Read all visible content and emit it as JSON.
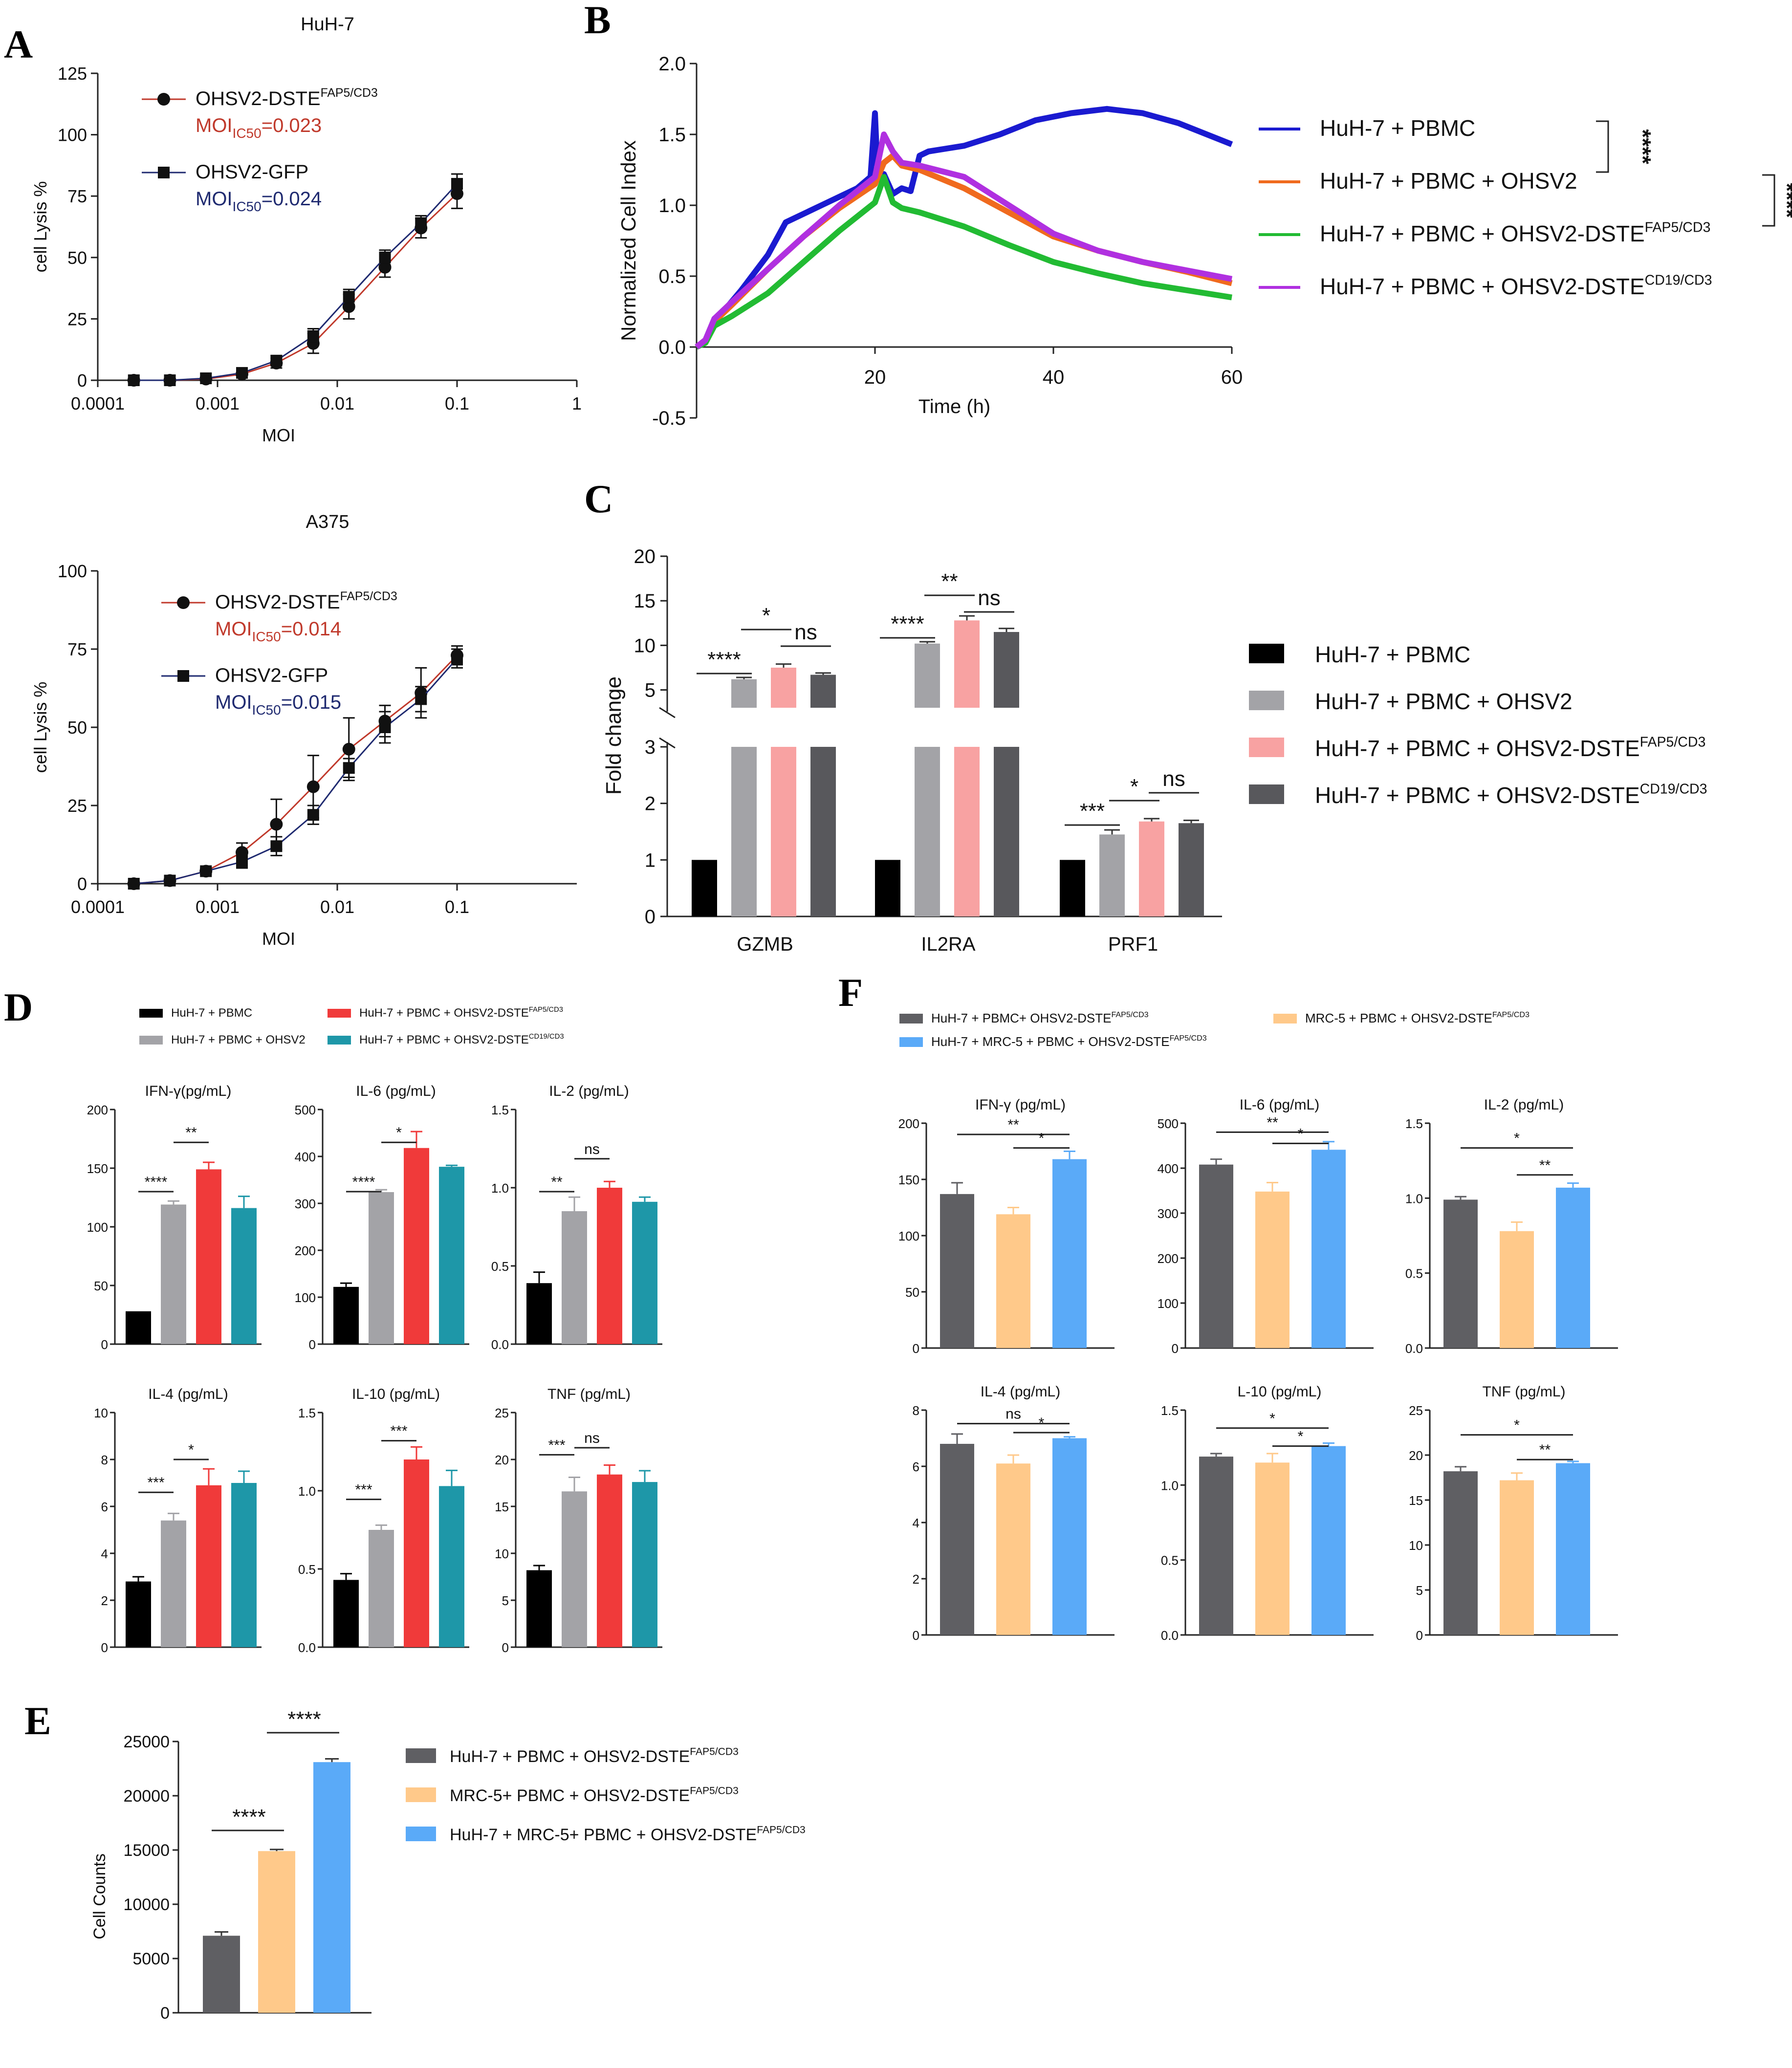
{
  "panel_labels": {
    "A": "A",
    "B": "B",
    "C": "C",
    "D": "D",
    "E": "E",
    "F": "F"
  },
  "colors": {
    "red_curve": "#c0392b",
    "navy_curve": "#1f2a70",
    "b_blue": "#1a1ad0",
    "b_orange": "#f06a1e",
    "b_green": "#22bb33",
    "b_purple": "#b030e0",
    "black": "#000000",
    "grey": "#a3a3a7",
    "pink": "#f8a2a2",
    "darkgrey": "#58585c",
    "d_red": "#f03a3a",
    "d_teal": "#1e97a8",
    "ef_grey": "#5f5f63",
    "ef_orange": "#ffc98a",
    "ef_blue": "#5aaaf8"
  },
  "chart_data": [
    {
      "id": "A1",
      "type": "line",
      "title": "HuH-7",
      "xlabel": "MOI",
      "ylabel": "cell Lysis %",
      "xscale": "log",
      "xlim": [
        0.0001,
        1
      ],
      "ylim": [
        0,
        125
      ],
      "xticks": [
        "0.0001",
        "0.001",
        "0.01",
        "0.1",
        "1"
      ],
      "yticks": [
        "0",
        "25",
        "50",
        "75",
        "100",
        "125"
      ],
      "legend": [
        {
          "name": "OHSV2-DSTE",
          "sup": "FAP5/CD3",
          "ic50_prefix": "MOI",
          "ic50_sub": "IC50",
          "ic50_value": "=0.023"
        },
        {
          "name": "OHSV2-GFP",
          "ic50_prefix": "MOI",
          "ic50_sub": "IC50",
          "ic50_value": "=0.024"
        }
      ],
      "series": [
        {
          "name": "OHSV2-DSTE FAP5/CD3",
          "marker": "circle",
          "x": [
            0.0002,
            0.0004,
            0.0008,
            0.0016,
            0.0031,
            0.0063,
            0.0125,
            0.025,
            0.05,
            0.1
          ],
          "y": [
            0,
            0,
            0.5,
            2.5,
            7,
            15,
            30,
            46,
            62,
            76
          ],
          "err": [
            0,
            0,
            0.5,
            1,
            2,
            4,
            5,
            4,
            4,
            6
          ]
        },
        {
          "name": "OHSV2-GFP",
          "marker": "square",
          "x": [
            0.0002,
            0.0004,
            0.0008,
            0.0016,
            0.0031,
            0.0063,
            0.0125,
            0.025,
            0.05,
            0.1
          ],
          "y": [
            0,
            0,
            0.8,
            3,
            8,
            18,
            34,
            50,
            64,
            80
          ],
          "err": [
            0,
            0,
            0.5,
            1,
            2,
            3,
            3,
            3,
            3,
            4
          ]
        }
      ]
    },
    {
      "id": "A2",
      "type": "line",
      "title": "A375",
      "xlabel": "MOI",
      "ylabel": "cell Lysis %",
      "xscale": "log",
      "xlim": [
        0.0001,
        1
      ],
      "ylim": [
        0,
        100
      ],
      "xticks": [
        "0.0001",
        "0.001",
        "0.01",
        "0.1"
      ],
      "yticks": [
        "0",
        "25",
        "50",
        "75",
        "100"
      ],
      "legend": [
        {
          "name": "OHSV2-DSTE",
          "sup": "FAP5/CD3",
          "ic50_prefix": "MOI",
          "ic50_sub": "IC50",
          "ic50_value": "=0.014"
        },
        {
          "name": "OHSV2-GFP",
          "ic50_prefix": "MOI",
          "ic50_sub": "IC50",
          "ic50_value": "=0.015"
        }
      ],
      "series": [
        {
          "name": "OHSV2-DSTE FAP5/CD3",
          "marker": "circle",
          "x": [
            0.0002,
            0.0004,
            0.0008,
            0.0016,
            0.0031,
            0.0063,
            0.0125,
            0.025,
            0.05,
            0.1
          ],
          "y": [
            0,
            1,
            4,
            10,
            19,
            31,
            43,
            52,
            61,
            73
          ],
          "err": [
            0,
            0.5,
            1,
            3,
            8,
            10,
            10,
            5,
            8,
            3
          ]
        },
        {
          "name": "OHSV2-GFP",
          "marker": "square",
          "x": [
            0.0002,
            0.0004,
            0.0008,
            0.0016,
            0.0031,
            0.0063,
            0.0125,
            0.025,
            0.05,
            0.1
          ],
          "y": [
            0,
            1,
            4,
            7,
            12,
            22,
            37,
            50,
            59,
            72
          ],
          "err": [
            0,
            0.5,
            1,
            2,
            3,
            3,
            3,
            5,
            4,
            3
          ]
        }
      ]
    },
    {
      "id": "B",
      "type": "line",
      "xlabel": "Time (h)",
      "ylabel": "Normalized Cell Index",
      "xlim": [
        0,
        60
      ],
      "ylim": [
        -0.5,
        2.0
      ],
      "xticks": [
        "20",
        "40",
        "60"
      ],
      "yticks": [
        "-0.5",
        "0.0",
        "0.5",
        "1.0",
        "1.5",
        "2.0"
      ],
      "series": [
        {
          "name": "HuH-7 + PBMC",
          "color_key": "b_blue",
          "x": [
            0,
            1,
            2,
            3,
            5,
            8,
            10,
            14,
            18,
            19.5,
            20,
            20.3,
            20.6,
            21,
            22,
            23,
            24,
            25,
            26,
            28,
            30,
            34,
            38,
            42,
            46,
            50,
            54,
            58,
            60
          ],
          "y": [
            0,
            0.05,
            0.2,
            0.25,
            0.4,
            0.65,
            0.88,
            1.0,
            1.12,
            1.2,
            1.65,
            1.2,
            1.18,
            1.22,
            1.08,
            1.12,
            1.1,
            1.35,
            1.38,
            1.4,
            1.42,
            1.5,
            1.6,
            1.65,
            1.68,
            1.65,
            1.58,
            1.48,
            1.43
          ]
        },
        {
          "name": "HuH-7 + PBMC + OHSV2",
          "color_key": "b_orange",
          "x": [
            0,
            1,
            2,
            4,
            8,
            12,
            16,
            20,
            21,
            22,
            23,
            25,
            30,
            35,
            40,
            45,
            50,
            55,
            60
          ],
          "y": [
            0,
            0.05,
            0.18,
            0.3,
            0.55,
            0.78,
            0.98,
            1.15,
            1.3,
            1.35,
            1.28,
            1.25,
            1.12,
            0.95,
            0.78,
            0.68,
            0.6,
            0.53,
            0.45
          ]
        },
        {
          "name": "HuH-7 + PBMC + OHSV2-DSTE FAP5/CD3",
          "color_key": "b_green",
          "x": [
            0,
            1,
            2,
            4,
            8,
            12,
            16,
            20,
            21,
            22,
            23,
            25,
            30,
            35,
            40,
            45,
            50,
            55,
            60
          ],
          "y": [
            0,
            0.03,
            0.15,
            0.22,
            0.38,
            0.6,
            0.82,
            1.02,
            1.2,
            1.02,
            0.98,
            0.95,
            0.85,
            0.72,
            0.6,
            0.52,
            0.45,
            0.4,
            0.35
          ]
        },
        {
          "name": "HuH-7 + PBMC + OHSV2-DSTE CD19/CD3",
          "color_key": "b_purple",
          "x": [
            0,
            1,
            2,
            4,
            8,
            12,
            16,
            20,
            21,
            22,
            23,
            25,
            30,
            35,
            40,
            45,
            50,
            55,
            60
          ],
          "y": [
            0,
            0.05,
            0.2,
            0.32,
            0.55,
            0.78,
            1.0,
            1.2,
            1.5,
            1.38,
            1.3,
            1.28,
            1.2,
            1.0,
            0.8,
            0.68,
            0.6,
            0.54,
            0.48
          ]
        }
      ],
      "legend": [
        {
          "text": "HuH-7 + PBMC",
          "sup": "",
          "color_key": "b_blue"
        },
        {
          "text": "HuH-7 + PBMC + OHSV2",
          "sup": "",
          "color_key": "b_orange"
        },
        {
          "text": "HuH-7 + PBMC + OHSV2-DSTE",
          "sup": "FAP5/CD3",
          "color_key": "b_green"
        },
        {
          "text": "HuH-7 + PBMC + OHSV2-DSTE",
          "sup": "CD19/CD3",
          "color_key": "b_purple"
        }
      ],
      "sig": [
        "****",
        "****"
      ]
    },
    {
      "id": "C",
      "type": "bar",
      "ylabel": "Fold change",
      "categories": [
        "GZMB",
        "IL2RA",
        "PRF1"
      ],
      "yaxis": "broken",
      "lower_range": [
        0,
        3
      ],
      "upper_range": [
        3,
        20
      ],
      "yticks_lower": [
        "0",
        "1",
        "2",
        "3"
      ],
      "yticks_upper": [
        "5",
        "10",
        "15",
        "20"
      ],
      "series": [
        {
          "name": "HuH-7 + PBMC",
          "color_key": "black",
          "values": [
            1,
            1,
            1
          ],
          "err": [
            0,
            0,
            0
          ]
        },
        {
          "name": "HuH-7 + PBMC + OHSV2",
          "color_key": "grey",
          "values": [
            6.2,
            10.2,
            1.45
          ],
          "err": [
            0.2,
            0.2,
            0.08
          ]
        },
        {
          "name": "HuH-7 + PBMC + OHSV2-DSTE FAP5/CD3",
          "color_key": "pink",
          "values": [
            7.5,
            12.8,
            1.68
          ],
          "err": [
            0.4,
            0.5,
            0.05
          ]
        },
        {
          "name": "HuH-7 + PBMC + OHSV2-DSTE CD19/CD3",
          "color_key": "darkgrey",
          "values": [
            6.7,
            11.5,
            1.65
          ],
          "err": [
            0.2,
            0.4,
            0.05
          ]
        }
      ],
      "legend": [
        {
          "text": "HuH-7 + PBMC",
          "sup": "",
          "color_key": "black"
        },
        {
          "text": "HuH-7 + PBMC + OHSV2",
          "sup": "",
          "color_key": "grey"
        },
        {
          "text": "HuH-7 + PBMC + OHSV2-DSTE",
          "sup": "FAP5/CD3",
          "color_key": "pink"
        },
        {
          "text": "HuH-7 + PBMC + OHSV2-DSTE",
          "sup": "CD19/CD3",
          "color_key": "darkgrey"
        }
      ],
      "sig": [
        [
          "****",
          "*",
          "ns"
        ],
        [
          "****",
          "**",
          "ns"
        ],
        [
          "***",
          "*",
          "ns"
        ]
      ]
    },
    {
      "id": "D",
      "type": "bar",
      "layout": "2x3",
      "legend": [
        {
          "text": "HuH-7 + PBMC",
          "sup": "",
          "color_key": "black"
        },
        {
          "text": "HuH-7 + PBMC + OHSV2-DSTE",
          "sup": "FAP5/CD3",
          "color_key": "d_red"
        },
        {
          "text": "HuH-7 + PBMC + OHSV2",
          "sup": "",
          "color_key": "grey"
        },
        {
          "text": "HuH-7 + PBMC + OHSV2-DSTE",
          "sup": "CD19/CD3",
          "color_key": "d_teal"
        }
      ],
      "subplots": [
        {
          "title": "IFN-γ(pg/mL)",
          "ymax": 200,
          "yticks": [
            "0",
            "50",
            "100",
            "150",
            "200"
          ],
          "values": [
            28,
            119,
            149,
            116
          ],
          "err": [
            0,
            3,
            6,
            10
          ],
          "sig": [
            "****",
            "**"
          ]
        },
        {
          "title": "IL-6 (pg/mL)",
          "ymax": 500,
          "yticks": [
            "0",
            "100",
            "200",
            "300",
            "400",
            "500"
          ],
          "values": [
            122,
            324,
            418,
            378
          ],
          "err": [
            8,
            5,
            35,
            3
          ],
          "sig": [
            "****",
            "*"
          ]
        },
        {
          "title": "IL-2 (pg/mL)",
          "ymax": 1.5,
          "yticks": [
            "0.0",
            "0.5",
            "1.0",
            "1.5"
          ],
          "values": [
            0.39,
            0.85,
            1.0,
            0.91
          ],
          "err": [
            0.07,
            0.09,
            0.04,
            0.03
          ],
          "sig": [
            "**",
            "ns"
          ]
        },
        {
          "title": "IL-4 (pg/mL)",
          "ymax": 10,
          "yticks": [
            "0",
            "2",
            "4",
            "6",
            "8",
            "10"
          ],
          "values": [
            2.8,
            5.4,
            6.9,
            7.0
          ],
          "err": [
            0.2,
            0.3,
            0.7,
            0.5
          ],
          "sig": [
            "***",
            "*"
          ]
        },
        {
          "title": "IL-10 (pg/mL)",
          "ymax": 1.5,
          "yticks": [
            "0.0",
            "0.5",
            "1.0",
            "1.5"
          ],
          "values": [
            0.43,
            0.75,
            1.2,
            1.03
          ],
          "err": [
            0.04,
            0.03,
            0.08,
            0.1
          ],
          "sig": [
            "***",
            "***"
          ]
        },
        {
          "title": "TNF (pg/mL)",
          "ymax": 25,
          "yticks": [
            "0",
            "5",
            "10",
            "15",
            "20",
            "25"
          ],
          "values": [
            8.2,
            16.6,
            18.4,
            17.6
          ],
          "err": [
            0.5,
            1.5,
            1.0,
            1.2
          ],
          "sig": [
            "***",
            "ns"
          ]
        }
      ]
    },
    {
      "id": "E",
      "type": "bar",
      "ylabel": "Cell Counts",
      "ylim": [
        0,
        25000
      ],
      "yticks": [
        "0",
        "5000",
        "10000",
        "15000",
        "20000",
        "25000"
      ],
      "categories": [
        "HuH-7 + PBMC + OHSV2-DSTE FAP5/CD3",
        "MRC-5+ PBMC + OHSV2-DSTE FAP5/CD3",
        "HuH-7 + MRC-5+ PBMC + OHSV2-DSTE FAP5/CD3"
      ],
      "values": [
        7100,
        14900,
        23100
      ],
      "err": [
        350,
        150,
        300
      ],
      "legend": [
        {
          "text": "HuH-7 + PBMC + OHSV2-DSTE",
          "sup": "FAP5/CD3",
          "color_key": "ef_grey"
        },
        {
          "text": "MRC-5+ PBMC + OHSV2-DSTE",
          "sup": "FAP5/CD3",
          "color_key": "ef_orange"
        },
        {
          "text": "HuH-7 + MRC-5+ PBMC + OHSV2-DSTE",
          "sup": "FAP5/CD3",
          "color_key": "ef_blue"
        }
      ],
      "sig": [
        "****",
        "****"
      ]
    },
    {
      "id": "F",
      "type": "bar",
      "layout": "2x3",
      "legend": [
        {
          "text": "HuH-7 + PBMC+ OHSV2-DSTE",
          "sup": "FAP5/CD3",
          "color_key": "ef_grey"
        },
        {
          "text": "MRC-5 + PBMC + OHSV2-DSTE",
          "sup": "FAP5/CD3",
          "color_key": "ef_orange"
        },
        {
          "text": "HuH-7 + MRC-5 + PBMC + OHSV2-DSTE",
          "sup": "FAP5/CD3",
          "color_key": "ef_blue"
        }
      ],
      "subplots": [
        {
          "title": "IFN-γ (pg/mL)",
          "ymax": 200,
          "yticks": [
            "0",
            "50",
            "100",
            "150",
            "200"
          ],
          "values": [
            137,
            119,
            168
          ],
          "err": [
            10,
            6,
            7
          ],
          "sig": [
            "**",
            "*"
          ]
        },
        {
          "title": "IL-6 (pg/mL)",
          "ymax": 500,
          "yticks": [
            "0",
            "100",
            "200",
            "300",
            "400",
            "500"
          ],
          "values": [
            408,
            348,
            441
          ],
          "err": [
            12,
            20,
            18
          ],
          "sig": [
            "**",
            "*"
          ]
        },
        {
          "title": "IL-2 (pg/mL)",
          "ymax": 1.5,
          "yticks": [
            "0.0",
            "0.5",
            "1.0",
            "1.5"
          ],
          "values": [
            0.99,
            0.78,
            1.07
          ],
          "err": [
            0.02,
            0.06,
            0.03
          ],
          "sig": [
            "*",
            "**"
          ]
        },
        {
          "title": "IL-4 (pg/mL)",
          "ymax": 8,
          "yticks": [
            "0",
            "2",
            "4",
            "6",
            "8"
          ],
          "values": [
            6.8,
            6.1,
            7.0
          ],
          "err": [
            0.35,
            0.3,
            0.05
          ],
          "sig": [
            "ns",
            "*"
          ]
        },
        {
          "title": "L-10 (pg/mL)",
          "ymax": 1.5,
          "yticks": [
            "0.0",
            "0.5",
            "1.0",
            "1.5"
          ],
          "values": [
            1.19,
            1.15,
            1.26
          ],
          "err": [
            0.02,
            0.06,
            0.02
          ],
          "sig": [
            "*",
            "*"
          ]
        },
        {
          "title": "TNF (pg/mL)",
          "ymax": 25,
          "yticks": [
            "0",
            "5",
            "10",
            "15",
            "20",
            "25"
          ],
          "values": [
            18.2,
            17.2,
            19.1
          ],
          "err": [
            0.5,
            0.8,
            0.2
          ],
          "sig": [
            "*",
            "**"
          ]
        }
      ]
    }
  ]
}
